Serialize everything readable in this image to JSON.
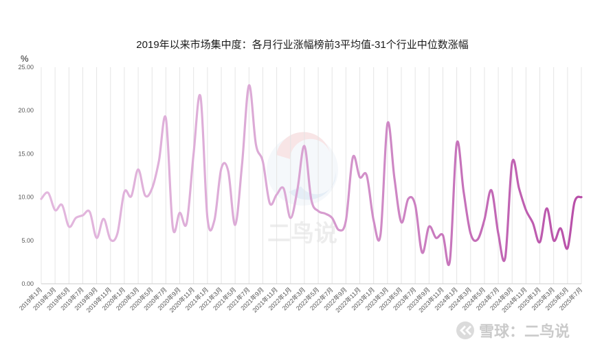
{
  "chart_data": {
    "type": "line",
    "title": "2019年以来市场集中度：各月行业涨幅榜前3平均值-31个行业中位数涨幅",
    "ylabel": "%",
    "ylim": [
      0,
      25
    ],
    "yticks": [
      "0.00",
      "5.00",
      "10.00",
      "15.00",
      "20.00",
      "25.00"
    ],
    "grid": true,
    "x": [
      "2019年1月",
      "2019年2月",
      "2019年3月",
      "2019年4月",
      "2019年5月",
      "2019年6月",
      "2019年7月",
      "2019年8月",
      "2019年9月",
      "2019年10月",
      "2019年11月",
      "2019年12月",
      "2020年1月",
      "2020年2月",
      "2020年3月",
      "2020年4月",
      "2020年5月",
      "2020年6月",
      "2020年7月",
      "2020年8月",
      "2020年9月",
      "2020年10月",
      "2020年11月",
      "2020年12月",
      "2021年1月",
      "2021年2月",
      "2021年3月",
      "2021年4月",
      "2021年5月",
      "2021年6月",
      "2021年7月",
      "2021年8月",
      "2021年9月",
      "2021年10月",
      "2021年11月",
      "2021年12月",
      "2022年1月",
      "2022年2月",
      "2022年3月",
      "2022年4月",
      "2022年5月",
      "2022年6月",
      "2022年7月",
      "2022年8月",
      "2022年9月",
      "2022年10月",
      "2022年11月",
      "2022年12月",
      "2023年1月",
      "2023年2月",
      "2023年3月",
      "2023年4月",
      "2023年5月",
      "2023年6月",
      "2023年7月",
      "2023年8月",
      "2023年9月",
      "2023年10月",
      "2023年11月",
      "2023年12月",
      "2024年1月",
      "2024年2月",
      "2024年3月",
      "2024年4月",
      "2024年5月",
      "2024年6月",
      "2024年7月",
      "2024年8月",
      "2024年9月",
      "2024年10月",
      "2024年11月",
      "2024年12月",
      "2025年1月",
      "2025年2月",
      "2025年3月",
      "2025年4月",
      "2025年5月",
      "2025年6月",
      "2025年7月"
    ],
    "xticks_shown": [
      "2019年1月",
      "2019年3月",
      "2019年5月",
      "2019年7月",
      "2019年9月",
      "2019年11月",
      "2020年1月",
      "2020年3月",
      "2020年5月",
      "2020年7月",
      "2020年9月",
      "2020年11月",
      "2021年1月",
      "2021年3月",
      "2021年5月",
      "2021年7月",
      "2021年9月",
      "2021年11月",
      "2022年1月",
      "2022年3月",
      "2022年5月",
      "2022年7月",
      "2022年9月",
      "2022年11月",
      "2023年1月",
      "2023年3月",
      "2023年5月",
      "2023年7月",
      "2023年9月",
      "2023年11月",
      "2024年1月",
      "2024年3月",
      "2024年5月",
      "2024年7月",
      "2024年9月",
      "2024年11月",
      "2025年1月",
      "2025年3月",
      "2025年5月",
      "2025年7月"
    ],
    "series": [
      {
        "values": [
          9.8,
          10.5,
          8.5,
          9.1,
          6.6,
          7.6,
          7.9,
          8.3,
          5.3,
          7.5,
          5.1,
          5.8,
          10.6,
          10.1,
          13.2,
          10.2,
          11.0,
          14.2,
          19.1,
          6.5,
          8.2,
          7.0,
          15.0,
          21.6,
          7.6,
          7.3,
          13.3,
          13.0,
          6.8,
          13.8,
          22.9,
          16.1,
          14.1,
          9.3,
          10.3,
          11.0,
          7.6,
          10.9,
          15.9,
          9.7,
          8.4,
          8.1,
          7.6,
          6.2,
          7.3,
          14.6,
          12.3,
          12.5,
          7.3,
          5.7,
          18.5,
          12.2,
          7.1,
          9.8,
          9.1,
          3.6,
          6.6,
          5.3,
          5.6,
          2.6,
          16.2,
          10.6,
          5.8,
          5.1,
          7.4,
          10.8,
          5.8,
          3.0,
          14.0,
          11.0,
          8.5,
          7.0,
          4.8,
          8.7,
          5.0,
          6.4,
          4.1,
          9.4,
          10.0
        ],
        "colors": [
          "#e3b8de",
          "#b84ea8"
        ]
      }
    ]
  },
  "watermarks": {
    "center_glyph": "二鸟说",
    "footer": "雪球：二鸟说"
  },
  "colors": {
    "grid": "#e4e4e4",
    "axis": "#cccccc",
    "line_start": "#e3b8de",
    "line_end": "#b84ea8"
  }
}
